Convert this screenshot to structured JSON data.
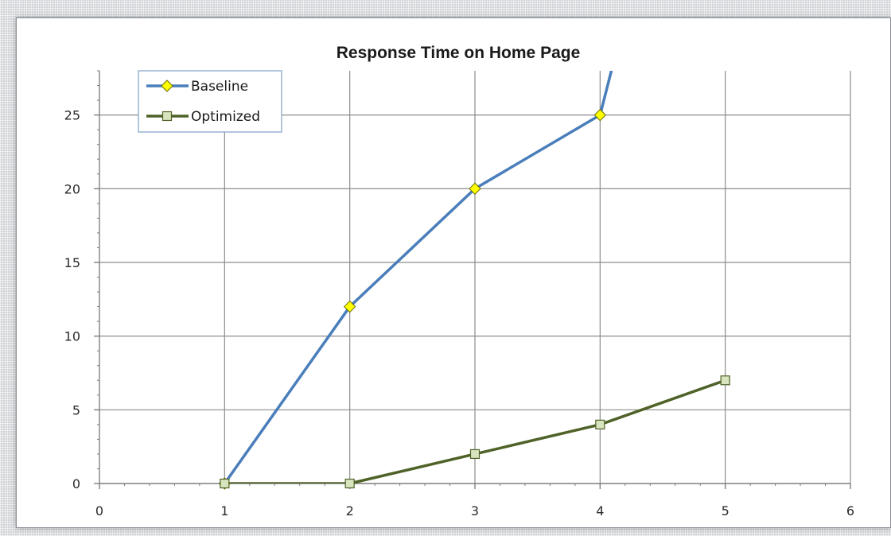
{
  "chart_data": {
    "type": "line",
    "title": "Response Time on Home Page",
    "xlabel": "",
    "ylabel": "",
    "xlim": [
      0,
      6
    ],
    "ylim": [
      0,
      28
    ],
    "x_ticks": [
      0,
      1,
      2,
      3,
      4,
      5,
      6
    ],
    "y_ticks": [
      0,
      5,
      10,
      15,
      20,
      25
    ],
    "grid": true,
    "legend_position": "top-left",
    "series": [
      {
        "name": "Baseline",
        "color": "#4a7ebb",
        "marker": "diamond",
        "marker_color": "#ffff00",
        "points": [
          [
            1,
            0
          ],
          [
            2,
            12
          ],
          [
            3,
            20
          ],
          [
            4,
            25
          ],
          [
            4.3,
            35
          ]
        ],
        "marked_points": [
          [
            1,
            0
          ],
          [
            2,
            12
          ],
          [
            3,
            20
          ],
          [
            4,
            25
          ]
        ]
      },
      {
        "name": "Optimized",
        "color": "#4f6228",
        "marker": "square",
        "marker_color": "#d7e4bd",
        "points": [
          [
            1,
            0
          ],
          [
            2,
            0
          ],
          [
            3,
            2
          ],
          [
            4,
            4
          ],
          [
            5,
            7
          ]
        ],
        "marked_points": [
          [
            1,
            0
          ],
          [
            2,
            0
          ],
          [
            3,
            2
          ],
          [
            4,
            4
          ],
          [
            5,
            7
          ]
        ]
      }
    ]
  }
}
